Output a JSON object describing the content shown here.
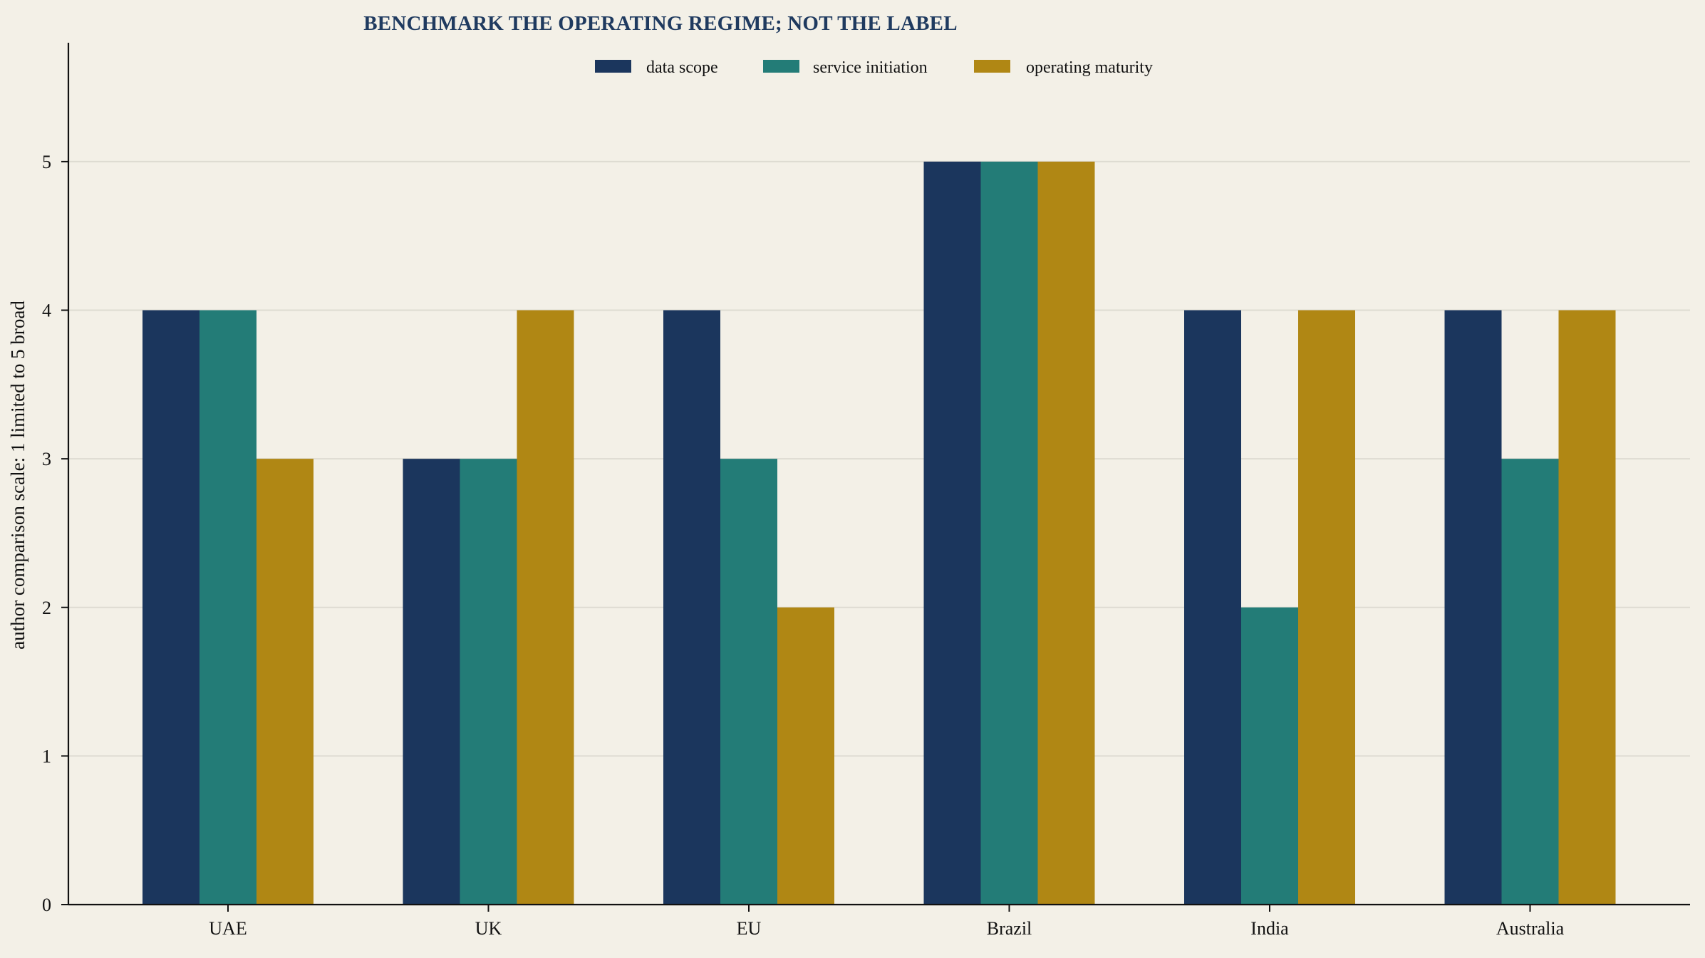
{
  "chart_data": {
    "type": "bar",
    "title": "BENCHMARK THE OPERATING REGIME; NOT THE LABEL",
    "xlabel": "",
    "ylabel": "author comparison scale: 1 limited to 5 broad",
    "categories": [
      "UAE",
      "UK",
      "EU",
      "Brazil",
      "India",
      "Australia"
    ],
    "series": [
      {
        "name": "data scope",
        "color": "#1b365d",
        "values": [
          4,
          3,
          4,
          5,
          4,
          4
        ]
      },
      {
        "name": "service initiation",
        "color": "#237c77",
        "values": [
          4,
          3,
          3,
          5,
          2,
          3
        ]
      },
      {
        "name": "operating maturity",
        "color": "#b08714",
        "values": [
          3,
          4,
          2,
          5,
          4,
          4
        ]
      }
    ],
    "ylim": [
      0,
      5.8
    ],
    "yticks": [
      0,
      1,
      2,
      3,
      4,
      5
    ],
    "grid": true,
    "legend_position": "top-center"
  }
}
